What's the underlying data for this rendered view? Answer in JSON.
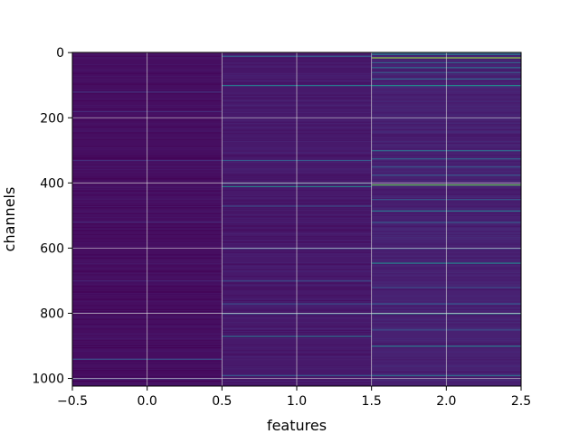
{
  "chart_data": {
    "type": "heatmap",
    "title": "",
    "xlabel": "features",
    "ylabel": "channels",
    "xlim": [
      -0.5,
      2.5
    ],
    "ylim": [
      1023.5,
      -0.5
    ],
    "x_ticks": [
      -0.5,
      0.0,
      0.5,
      1.0,
      1.5,
      2.0,
      2.5
    ],
    "x_tick_labels": [
      "−0.5",
      "0.0",
      "0.5",
      "1.0",
      "1.5",
      "2.0",
      "2.5"
    ],
    "y_ticks": [
      0,
      200,
      400,
      600,
      800,
      1000
    ],
    "y_tick_labels": [
      "0",
      "200",
      "400",
      "600",
      "800",
      "1000"
    ],
    "grid": true,
    "colormap": "viridis",
    "n_rows": 1024,
    "n_cols": 3,
    "background_level": [
      0.05,
      0.09,
      0.12
    ],
    "highlight_rows": {
      "0": [
        {
          "row": 120,
          "value": 0.2
        },
        {
          "row": 180,
          "value": 0.16
        },
        {
          "row": 330,
          "value": 0.16
        },
        {
          "row": 520,
          "value": 0.15
        },
        {
          "row": 700,
          "value": 0.15
        },
        {
          "row": 940,
          "value": 0.3
        },
        {
          "row": 1000,
          "value": 0.22
        }
      ],
      "1": [
        {
          "row": 10,
          "value": 0.4
        },
        {
          "row": 100,
          "value": 0.5
        },
        {
          "row": 330,
          "value": 0.35
        },
        {
          "row": 400,
          "value": 0.35
        },
        {
          "row": 410,
          "value": 0.55
        },
        {
          "row": 470,
          "value": 0.3
        },
        {
          "row": 600,
          "value": 0.3
        },
        {
          "row": 700,
          "value": 0.3
        },
        {
          "row": 770,
          "value": 0.3
        },
        {
          "row": 800,
          "value": 0.4
        },
        {
          "row": 870,
          "value": 0.45
        },
        {
          "row": 990,
          "value": 0.35
        }
      ],
      "2": [
        {
          "row": 0,
          "value": 0.55
        },
        {
          "row": 5,
          "value": 0.45
        },
        {
          "row": 15,
          "value": 0.9
        },
        {
          "row": 30,
          "value": 0.4
        },
        {
          "row": 45,
          "value": 0.45
        },
        {
          "row": 60,
          "value": 0.35
        },
        {
          "row": 80,
          "value": 0.4
        },
        {
          "row": 100,
          "value": 0.6
        },
        {
          "row": 300,
          "value": 0.45
        },
        {
          "row": 325,
          "value": 0.4
        },
        {
          "row": 350,
          "value": 0.35
        },
        {
          "row": 375,
          "value": 0.35
        },
        {
          "row": 405,
          "value": 0.85
        },
        {
          "row": 450,
          "value": 0.35
        },
        {
          "row": 485,
          "value": 0.5
        },
        {
          "row": 520,
          "value": 0.35
        },
        {
          "row": 600,
          "value": 0.3
        },
        {
          "row": 645,
          "value": 0.55
        },
        {
          "row": 720,
          "value": 0.3
        },
        {
          "row": 770,
          "value": 0.35
        },
        {
          "row": 800,
          "value": 0.6
        },
        {
          "row": 850,
          "value": 0.3
        },
        {
          "row": 900,
          "value": 0.5
        },
        {
          "row": 990,
          "value": 0.45
        }
      ]
    }
  }
}
